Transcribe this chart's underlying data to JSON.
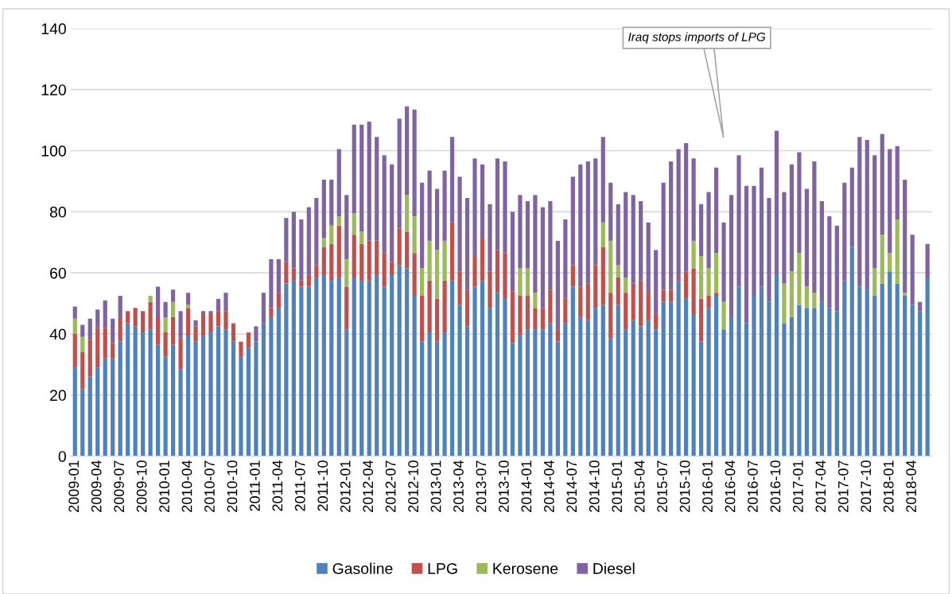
{
  "chart_data": {
    "type": "bar",
    "stacked": true,
    "categories": [
      "2009-01",
      null,
      null,
      "2009-04",
      null,
      null,
      "2009-07",
      null,
      null,
      "2009-10",
      null,
      null,
      "2010-01",
      null,
      null,
      "2010-04",
      null,
      null,
      "2010-07",
      null,
      null,
      "2010-10",
      null,
      null,
      "2011-01",
      null,
      null,
      "2011-04",
      null,
      null,
      "2011-07",
      null,
      null,
      "2011-10",
      null,
      null,
      "2012-01",
      null,
      null,
      "2012-04",
      null,
      null,
      "2012-07",
      null,
      null,
      "2012-10",
      null,
      null,
      "2013-01",
      null,
      null,
      "2013-04",
      null,
      null,
      "2013-07",
      null,
      null,
      "2013-10",
      null,
      null,
      "2014-01",
      null,
      null,
      "2014-04",
      null,
      null,
      "2014-07",
      null,
      null,
      "2014-10",
      null,
      null,
      "2015-01",
      null,
      null,
      "2015-04",
      null,
      null,
      "2015-07",
      null,
      null,
      "2015-10",
      null,
      null,
      "2016-01",
      null,
      null,
      "2016-04",
      null,
      null,
      "2016-07",
      null,
      null,
      "2016-10",
      null,
      null,
      "2017-01",
      null,
      null,
      "2017-04",
      null,
      null,
      "2017-07",
      null,
      null,
      "2017-10",
      null,
      null,
      "2018-01",
      null,
      null,
      "2018-04",
      null,
      null
    ],
    "series": [
      {
        "name": "Gasoline",
        "color": "#4f81bd",
        "values": [
          29,
          22,
          26,
          29,
          32,
          32,
          37.5,
          43.5,
          42.5,
          40.5,
          41.5,
          36.5,
          32.5,
          36.5,
          28.5,
          39.5,
          37.5,
          39.5,
          40.5,
          42.5,
          41.5,
          37.5,
          32.5,
          35.5,
          37.5,
          43.5,
          45.5,
          48.5,
          56.5,
          57.5,
          55.5,
          55.5,
          58.5,
          59.5,
          57.5,
          58.5,
          41.5,
          58.5,
          57.5,
          57.5,
          59.5,
          55.5,
          59.5,
          62.5,
          61.5,
          52.5,
          37.5,
          40.5,
          37.5,
          40.5,
          57.5,
          49.5,
          42.5,
          55.5,
          57.5,
          48.5,
          53.5,
          51.5,
          37,
          39.5,
          41.5,
          41.5,
          41.5,
          43.5,
          37.5,
          43.5,
          55.5,
          45.5,
          44.5,
          48.5,
          49.5,
          38.5,
          49.5,
          41.5,
          44.5,
          42.5,
          44.5,
          41.5,
          50.5,
          50.5,
          57.5,
          51.5,
          46.5,
          37.5,
          48.5,
          52.5,
          41.5,
          45.5,
          55.5,
          43.5,
          52.5,
          55.5,
          50.5,
          59.5,
          43.5,
          45.5,
          49.5,
          48.5,
          48.5,
          50.5,
          48.5,
          47.5,
          57.5,
          68.5,
          55.5,
          54.5,
          52.5,
          56.5,
          60.5,
          56.5,
          52.5,
          49.5,
          47.5,
          58.5
        ]
      },
      {
        "name": "LPG",
        "color": "#c0504d",
        "values": [
          11,
          12,
          12,
          13,
          10,
          5,
          8,
          4,
          6,
          7,
          9,
          9,
          8,
          9,
          10,
          9,
          5,
          7,
          6,
          5,
          6,
          6,
          5,
          5,
          0,
          0,
          3,
          5,
          7,
          4,
          2,
          4,
          4,
          9,
          12,
          17,
          14,
          14,
          12,
          13,
          11,
          11,
          4,
          12,
          12,
          14,
          15,
          17,
          14,
          17,
          19,
          11,
          12,
          10,
          14,
          12,
          14,
          15,
          17,
          13,
          11,
          7,
          7,
          11,
          4,
          8,
          7,
          10,
          12,
          14,
          19,
          15,
          9,
          12,
          12,
          15,
          9,
          5,
          4,
          4,
          1,
          9,
          15,
          14,
          4,
          1,
          0,
          0,
          0,
          0,
          0,
          0,
          0,
          0,
          0,
          0,
          0,
          0,
          0,
          0,
          0,
          0,
          0,
          0,
          0,
          0,
          0,
          0,
          0,
          0,
          0,
          0,
          0,
          0
        ]
      },
      {
        "name": "Kerosene",
        "color": "#9bbb59",
        "values": [
          5,
          5,
          0,
          0,
          0,
          0,
          0,
          0,
          0,
          0,
          2,
          0,
          5,
          5,
          0,
          1,
          0,
          0,
          0,
          0,
          0,
          0,
          0,
          0,
          0,
          0,
          0,
          0,
          0,
          0,
          0,
          0,
          0,
          3,
          6,
          3,
          9,
          7,
          4,
          0,
          0,
          0,
          0,
          0,
          12,
          12,
          9,
          13,
          16,
          13,
          0,
          0,
          0,
          0,
          0,
          0,
          0,
          0,
          0,
          9,
          9,
          5,
          0,
          0,
          0,
          0,
          0,
          0,
          0,
          0,
          8,
          17,
          4,
          5,
          0,
          0,
          0,
          0,
          0,
          0,
          0,
          0,
          9,
          14,
          9,
          13,
          9,
          0,
          0,
          0,
          0,
          0,
          0,
          0,
          13,
          15,
          17,
          7,
          5,
          0,
          0,
          0,
          0,
          0,
          0,
          0,
          9,
          16,
          6,
          21,
          1,
          0,
          0,
          0
        ]
      },
      {
        "name": "Diesel",
        "color": "#8064a2",
        "values": [
          4,
          4,
          7,
          6,
          9,
          8,
          7,
          0,
          0,
          0,
          0,
          10,
          5,
          4,
          9,
          4,
          2,
          1,
          1,
          4,
          6,
          0,
          0,
          0,
          5,
          10,
          16,
          11,
          14.5,
          18.5,
          20,
          22,
          22,
          19,
          15,
          22,
          21,
          29,
          35,
          39,
          34,
          32,
          32,
          36,
          29,
          35,
          28,
          23,
          20,
          23,
          28,
          31,
          30,
          32,
          24,
          22,
          30,
          30,
          26,
          24,
          22,
          32,
          33,
          29,
          29,
          26,
          29,
          40,
          40,
          35,
          28,
          19,
          20,
          28,
          29,
          26,
          23,
          21,
          35,
          42,
          42,
          42,
          27,
          17,
          25,
          28,
          26,
          40,
          43,
          45,
          36,
          39,
          34,
          47,
          30,
          35,
          33,
          32,
          43,
          33,
          30,
          28,
          32,
          26,
          49,
          49,
          37,
          33,
          34,
          24,
          37,
          23,
          3,
          11
        ]
      }
    ],
    "ylim": [
      0,
      140
    ],
    "yticks": [
      0,
      20,
      40,
      60,
      80,
      100,
      120,
      140
    ],
    "grid": "y",
    "legend": "bottom",
    "annotations": [
      "Iraq stops imports of LPG"
    ]
  }
}
